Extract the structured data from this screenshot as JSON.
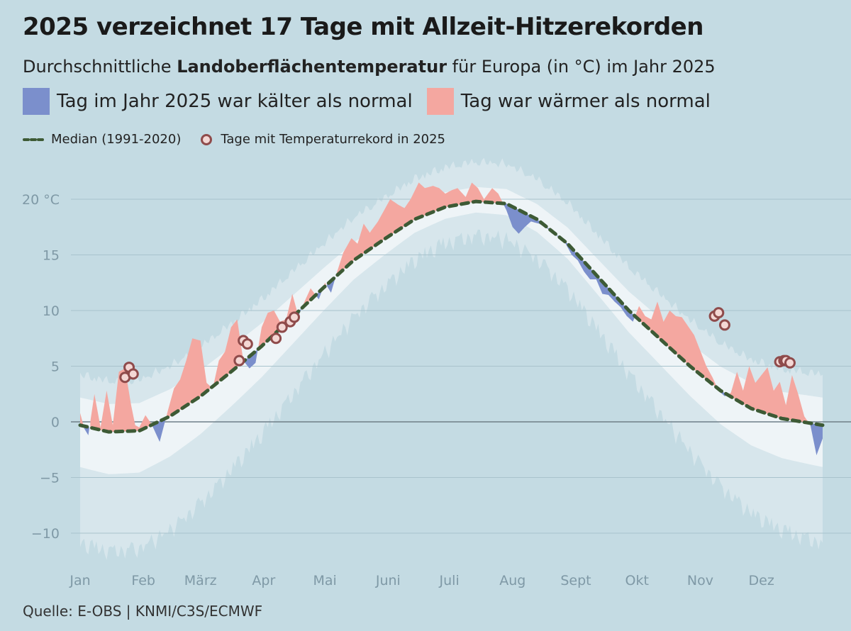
{
  "title": "2025 verzeichnet 17 Tage mit Allzeit-Hitzerekorden",
  "subtitle": {
    "prefix": "Durchschnittliche ",
    "bold": "Landoberflächentemperatur",
    "suffix": " für Europa (in °C) im Jahr 2025"
  },
  "legend": {
    "colder_label": "Tag im Jahr 2025 war kälter als normal",
    "warmer_label": "Tag war wärmer als normal",
    "median_label": "Median (1991-2020)",
    "record_label": "Tage mit Temperaturrekord in 2025"
  },
  "source": "Quelle: E-OBS | KNMI/C3S/ECMWF",
  "colors": {
    "background": "#c4dbe3",
    "colder": "#7b8fcc",
    "warmer": "#f4a7a0",
    "median": "#3d5a35",
    "record_marker": "#8f4b4b",
    "outer_band": "#d7e6ec",
    "inner_band": "#eef4f7"
  },
  "chart_data": {
    "type": "area",
    "title": "2025 verzeichnet 17 Tage mit Allzeit-Hitzerekorden",
    "ylabel": "",
    "ylim": [
      -12,
      23
    ],
    "yticks": [
      {
        "value": 20,
        "label": "20 °C"
      },
      {
        "value": 15,
        "label": "15"
      },
      {
        "value": 10,
        "label": "10"
      },
      {
        "value": 5,
        "label": "5"
      },
      {
        "value": 0,
        "label": "0"
      },
      {
        "value": -5,
        "label": "−5"
      },
      {
        "value": -10,
        "label": "−10"
      }
    ],
    "xlim": [
      1,
      365
    ],
    "months": [
      {
        "label": "Jan",
        "day": 1
      },
      {
        "label": "Feb",
        "day": 32
      },
      {
        "label": "März",
        "day": 60
      },
      {
        "label": "Apr",
        "day": 91
      },
      {
        "label": "Mai",
        "day": 121
      },
      {
        "label": "Juni",
        "day": 152
      },
      {
        "label": "Juli",
        "day": 182
      },
      {
        "label": "Aug",
        "day": 213
      },
      {
        "label": "Sept",
        "day": 244
      },
      {
        "label": "Okt",
        "day": 274
      },
      {
        "label": "Nov",
        "day": 305
      },
      {
        "label": "Dez",
        "day": 335
      }
    ],
    "grid": true,
    "median": {
      "name": "Median (1991-2020)",
      "days": [
        1,
        15,
        30,
        45,
        60,
        75,
        90,
        105,
        120,
        135,
        150,
        165,
        180,
        195,
        210,
        225,
        240,
        255,
        270,
        285,
        300,
        315,
        330,
        345,
        365
      ],
      "values": [
        -0.3,
        -0.9,
        -0.8,
        0.5,
        2.3,
        4.5,
        6.8,
        9.4,
        12.0,
        14.5,
        16.4,
        18.2,
        19.3,
        19.8,
        19.6,
        18.2,
        16.0,
        13.0,
        10.0,
        7.5,
        5.0,
        2.8,
        1.2,
        0.3,
        -0.3
      ]
    },
    "daily_2025": {
      "days": [
        1,
        3,
        5,
        8,
        11,
        14,
        17,
        20,
        23,
        26,
        28,
        30,
        33,
        36,
        40,
        44,
        47,
        50,
        53,
        56,
        60,
        63,
        66,
        69,
        72,
        75,
        78,
        81,
        84,
        87,
        90,
        93,
        96,
        99,
        102,
        105,
        108,
        111,
        114,
        118,
        121,
        124,
        127,
        130,
        134,
        137,
        140,
        143,
        147,
        150,
        153,
        157,
        160,
        163,
        167,
        170,
        174,
        177,
        180,
        183,
        186,
        190,
        193,
        196,
        199,
        203,
        206,
        210,
        213,
        216,
        219,
        222,
        226,
        229,
        233,
        236,
        239,
        242,
        245,
        248,
        251,
        254,
        257,
        260,
        263,
        266,
        269,
        272,
        275,
        278,
        281,
        284,
        287,
        290,
        293,
        296,
        299,
        302,
        305,
        308,
        311,
        314,
        317,
        320,
        323,
        326,
        329,
        332,
        335,
        338,
        341,
        344,
        347,
        350,
        353,
        356,
        359,
        362,
        365
      ],
      "values": [
        0.8,
        -0.6,
        -1.2,
        2.5,
        -0.5,
        2.8,
        -0.3,
        4.5,
        4.8,
        1.5,
        -0.3,
        -0.5,
        0.6,
        -0.2,
        -1.8,
        1.0,
        3.0,
        3.8,
        5.5,
        7.5,
        7.3,
        3.5,
        3.0,
        5.5,
        6.3,
        8.5,
        9.2,
        5.5,
        4.8,
        5.3,
        8.5,
        9.8,
        10.0,
        9.0,
        9.2,
        11.5,
        9.5,
        10.8,
        12.0,
        11.0,
        12.5,
        11.6,
        13.5,
        15.2,
        16.5,
        16.0,
        17.8,
        17.0,
        18.0,
        19.0,
        20.0,
        19.5,
        19.2,
        20.0,
        21.5,
        21.0,
        21.2,
        21.0,
        20.5,
        20.8,
        21.0,
        20.2,
        21.5,
        21.0,
        20.0,
        21.0,
        20.5,
        19.0,
        17.5,
        16.9,
        17.5,
        18.0,
        17.8,
        17.5,
        17.0,
        16.5,
        16.0,
        15.0,
        14.5,
        13.5,
        12.8,
        12.8,
        11.5,
        11.4,
        10.8,
        10.3,
        9.5,
        9.0,
        10.4,
        9.5,
        9.2,
        10.8,
        9.0,
        10.0,
        9.5,
        9.4,
        8.6,
        7.8,
        6.4,
        5.0,
        4.0,
        2.8,
        2.3,
        2.6,
        4.5,
        2.8,
        5.0,
        3.5,
        4.2,
        4.9,
        2.8,
        3.6,
        1.5,
        4.2,
        2.5,
        0.5,
        -0.3,
        -3.0,
        -1.5
      ]
    },
    "record_days": [
      {
        "day": 23,
        "value": 4.0
      },
      {
        "day": 25,
        "value": 4.9
      },
      {
        "day": 27,
        "value": 4.3
      },
      {
        "day": 79,
        "value": 5.5
      },
      {
        "day": 81,
        "value": 7.3
      },
      {
        "day": 83,
        "value": 7.0
      },
      {
        "day": 97,
        "value": 7.5
      },
      {
        "day": 100,
        "value": 8.5
      },
      {
        "day": 104,
        "value": 9.0
      },
      {
        "day": 106,
        "value": 9.4
      },
      {
        "day": 312,
        "value": 9.5
      },
      {
        "day": 314,
        "value": 9.8
      },
      {
        "day": 317,
        "value": 8.7
      },
      {
        "day": 344,
        "value": 5.4
      },
      {
        "day": 346,
        "value": 5.5
      },
      {
        "day": 347,
        "value": 5.5
      },
      {
        "day": 349,
        "value": 5.3
      }
    ]
  }
}
